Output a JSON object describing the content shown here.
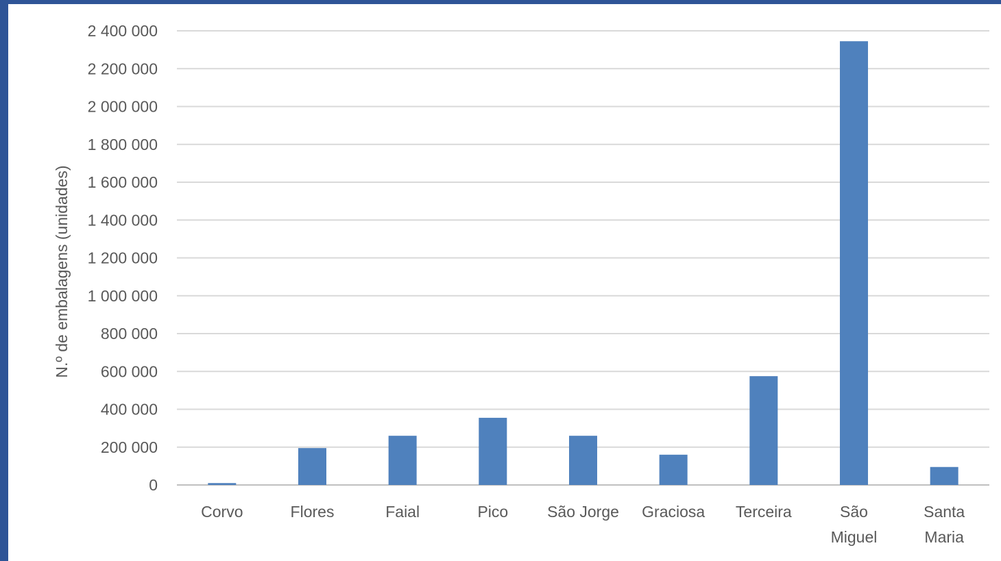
{
  "colors": {
    "frame": "#2f5597",
    "background": "#ffffff",
    "bar": "#4f81bd",
    "gridline": "#d9d9d9",
    "text": "#595959"
  },
  "chart_data": {
    "type": "bar",
    "title": "",
    "xlabel": "",
    "ylabel": "N.º de embalagens (unidades)",
    "categories": [
      [
        "Corvo"
      ],
      [
        "Flores"
      ],
      [
        "Faial"
      ],
      [
        "Pico"
      ],
      [
        "São Jorge"
      ],
      [
        "Graciosa"
      ],
      [
        "Terceira"
      ],
      [
        "São",
        "Miguel"
      ],
      [
        "Santa",
        "Maria"
      ]
    ],
    "values": [
      10000,
      195000,
      260000,
      355000,
      260000,
      160000,
      575000,
      2345000,
      95000
    ],
    "ylim": [
      0,
      2400000
    ],
    "yticks": [
      0,
      200000,
      400000,
      600000,
      800000,
      1000000,
      1200000,
      1400000,
      1600000,
      1800000,
      2000000,
      2200000,
      2400000
    ],
    "ytick_labels": [
      "0",
      "200 000",
      "400 000",
      "600 000",
      "800 000",
      "1 000 000",
      "1 200 000",
      "1 400 000",
      "1 600 000",
      "1 800 000",
      "2 000 000",
      "2 200 000",
      "2 400 000"
    ],
    "grid": true,
    "legend": "none"
  }
}
